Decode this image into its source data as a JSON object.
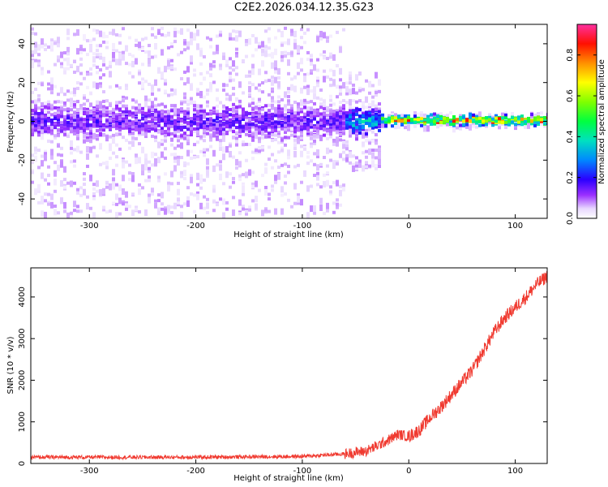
{
  "title": "C2E2.2026.034.12.35.G23",
  "chart_data": [
    {
      "type": "heatmap",
      "xlabel": "Height of straight line (km)",
      "ylabel": "Frequency (Hz)",
      "xlim": [
        -355,
        130
      ],
      "ylim": [
        -50,
        50
      ],
      "xticks": [
        -300,
        -200,
        -100,
        0,
        100
      ],
      "yticks": [
        -40,
        -20,
        0,
        20,
        40
      ],
      "colorbar": {
        "label": "Normalized spectral amplitude",
        "range": [
          0,
          0.95
        ],
        "ticks": [
          0.0,
          0.2,
          0.4,
          0.6,
          0.8
        ],
        "tick_labels": [
          "0.0",
          "0.2",
          "0.4",
          "0.6",
          "0.8"
        ]
      },
      "bands": [
        {
          "x_from": -355,
          "x_to": -60,
          "core_halfwidth_hz": 8,
          "spread_halfwidth_hz": 48,
          "peak_amplitude": 0.2
        },
        {
          "x_from": -60,
          "x_to": -28,
          "core_halfwidth_hz": 5,
          "spread_halfwidth_hz": 25,
          "peak_amplitude": 0.45
        },
        {
          "x_from": -28,
          "x_to": 130,
          "core_halfwidth_hz": 2,
          "spread_halfwidth_hz": 4,
          "peak_amplitude": 0.9
        }
      ]
    },
    {
      "type": "line",
      "xlabel": "Height of straight line (km)",
      "ylabel": "SNR (10 * v/v)",
      "xlim": [
        -355,
        130
      ],
      "ylim": [
        0,
        4700
      ],
      "xticks": [
        -300,
        -200,
        -100,
        0,
        100
      ],
      "yticks": [
        0,
        1000,
        2000,
        3000,
        4000
      ],
      "series": [
        {
          "color": "#f03a30",
          "x": [
            -355,
            -300,
            -250,
            -200,
            -150,
            -100,
            -80,
            -60,
            -40,
            -30,
            -20,
            -10,
            0,
            10,
            20,
            30,
            40,
            50,
            60,
            70,
            80,
            90,
            100,
            110,
            120,
            130
          ],
          "y": [
            150,
            150,
            150,
            150,
            160,
            170,
            200,
            230,
            300,
            420,
            550,
            700,
            650,
            800,
            1100,
            1350,
            1650,
            1950,
            2250,
            2700,
            3150,
            3500,
            3750,
            4000,
            4300,
            4500
          ]
        }
      ]
    }
  ]
}
